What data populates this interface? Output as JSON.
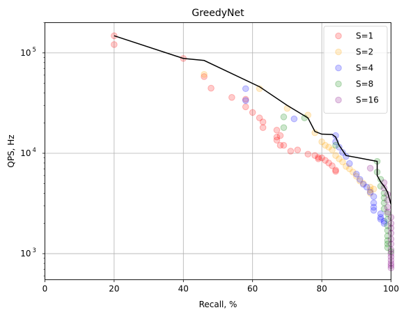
{
  "chart_data": {
    "type": "scatter",
    "title": "GreedyNet",
    "xlabel": "Recall, %",
    "ylabel": "QPS, Hz",
    "xlim": [
      0,
      100
    ],
    "ylim": [
      550,
      200000
    ],
    "y_scale": "log",
    "grid": true,
    "legend": "top-right",
    "x_ticks": [
      {
        "value": 0,
        "label": "0"
      },
      {
        "value": 20,
        "label": "20"
      },
      {
        "value": 40,
        "label": "40"
      },
      {
        "value": 60,
        "label": "60"
      },
      {
        "value": 80,
        "label": "80"
      },
      {
        "value": 100,
        "label": "100"
      }
    ],
    "y_ticks": [
      {
        "value": 1000,
        "base": "10",
        "exp": "3"
      },
      {
        "value": 10000,
        "base": "10",
        "exp": "4"
      },
      {
        "value": 100000,
        "base": "10",
        "exp": "5"
      }
    ],
    "series": [
      {
        "name": "S=1",
        "color": "#ff0000",
        "points": [
          [
            20,
            148000
          ],
          [
            20,
            121000
          ],
          [
            40,
            88000
          ],
          [
            46,
            58000
          ],
          [
            48,
            44500
          ],
          [
            54,
            36000
          ],
          [
            58,
            29000
          ],
          [
            58,
            34500
          ],
          [
            60,
            25500
          ],
          [
            62,
            22500
          ],
          [
            63,
            20500
          ],
          [
            63,
            18000
          ],
          [
            67,
            17000
          ],
          [
            67,
            14500
          ],
          [
            67,
            13500
          ],
          [
            68,
            12000
          ],
          [
            68,
            15000
          ],
          [
            69,
            12000
          ],
          [
            71,
            10500
          ],
          [
            73,
            10800
          ],
          [
            76,
            9800
          ],
          [
            78,
            9500
          ],
          [
            79,
            9100
          ],
          [
            79,
            8800
          ],
          [
            80,
            9000
          ],
          [
            81,
            8500
          ],
          [
            82,
            8000
          ],
          [
            83,
            7500
          ],
          [
            84,
            6800
          ],
          [
            84,
            6600
          ]
        ]
      },
      {
        "name": "S=2",
        "color": "#ffa500",
        "points": [
          [
            46,
            61000
          ],
          [
            62,
            44000
          ],
          [
            70,
            28000
          ],
          [
            76,
            24000
          ],
          [
            78,
            16000
          ],
          [
            80,
            13000
          ],
          [
            81,
            12000
          ],
          [
            82,
            11500
          ],
          [
            83,
            10800
          ],
          [
            84,
            9500
          ],
          [
            85,
            8800
          ],
          [
            86,
            8200
          ],
          [
            87,
            7400
          ],
          [
            88,
            7000
          ],
          [
            89,
            6500
          ],
          [
            90,
            5900
          ],
          [
            91,
            5300
          ],
          [
            92,
            5000
          ],
          [
            94,
            4600
          ],
          [
            94,
            4300
          ],
          [
            94,
            4000
          ],
          [
            95,
            4400
          ]
        ]
      },
      {
        "name": "S=4",
        "color": "#0000ff",
        "points": [
          [
            58,
            44000
          ],
          [
            58,
            33500
          ],
          [
            72,
            22000
          ],
          [
            84,
            15000
          ],
          [
            84,
            13000
          ],
          [
            85,
            11500
          ],
          [
            86,
            10200
          ],
          [
            87,
            9300
          ],
          [
            88,
            7900
          ],
          [
            90,
            6200
          ],
          [
            91,
            5500
          ],
          [
            92,
            4900
          ],
          [
            93,
            4600
          ],
          [
            94,
            4100
          ],
          [
            95,
            3700
          ],
          [
            95,
            3200
          ],
          [
            95,
            2900
          ],
          [
            95,
            2700
          ],
          [
            97,
            2500
          ],
          [
            97,
            2300
          ],
          [
            97,
            2200
          ],
          [
            98,
            2100
          ],
          [
            98,
            2000
          ]
        ]
      },
      {
        "name": "S=8",
        "color": "#008000",
        "points": [
          [
            69,
            23000
          ],
          [
            69,
            18000
          ],
          [
            75,
            22500
          ],
          [
            84,
            12000
          ],
          [
            96,
            8300
          ],
          [
            96,
            6500
          ],
          [
            97,
            5500
          ],
          [
            97,
            4700
          ],
          [
            98,
            4000
          ],
          [
            98,
            3600
          ],
          [
            98,
            3200
          ],
          [
            98,
            2800
          ],
          [
            99,
            2500
          ],
          [
            99,
            2200
          ],
          [
            99,
            1900
          ],
          [
            99,
            1700
          ],
          [
            99,
            1500
          ],
          [
            99,
            1350
          ],
          [
            99,
            1250
          ],
          [
            99,
            1150
          ],
          [
            100,
            1050
          ]
        ]
      },
      {
        "name": "S=16",
        "color": "#800080",
        "points": [
          [
            94,
            7100
          ],
          [
            98,
            5100
          ],
          [
            98,
            4500
          ],
          [
            99,
            3900
          ],
          [
            99,
            3400
          ],
          [
            99,
            2900
          ],
          [
            99,
            2600
          ],
          [
            100,
            2300
          ],
          [
            100,
            2000
          ],
          [
            100,
            1800
          ],
          [
            100,
            1600
          ],
          [
            100,
            1400
          ],
          [
            100,
            1250
          ],
          [
            100,
            1100
          ],
          [
            100,
            1000
          ],
          [
            100,
            930
          ],
          [
            100,
            860
          ],
          [
            100,
            800
          ],
          [
            100,
            760
          ],
          [
            100,
            720
          ]
        ]
      }
    ],
    "frontier": {
      "color": "#000000",
      "points": [
        [
          20,
          148000
        ],
        [
          40,
          88000
        ],
        [
          46,
          84000
        ],
        [
          62,
          46000
        ],
        [
          70,
          30000
        ],
        [
          76,
          22500
        ],
        [
          78,
          16500
        ],
        [
          80,
          15500
        ],
        [
          83,
          15400
        ],
        [
          84,
          14500
        ],
        [
          85,
          12000
        ],
        [
          87,
          9500
        ],
        [
          96,
          8300
        ],
        [
          96,
          6000
        ],
        [
          97,
          5200
        ],
        [
          98,
          4700
        ],
        [
          99,
          4100
        ],
        [
          100,
          3100
        ]
      ]
    }
  }
}
